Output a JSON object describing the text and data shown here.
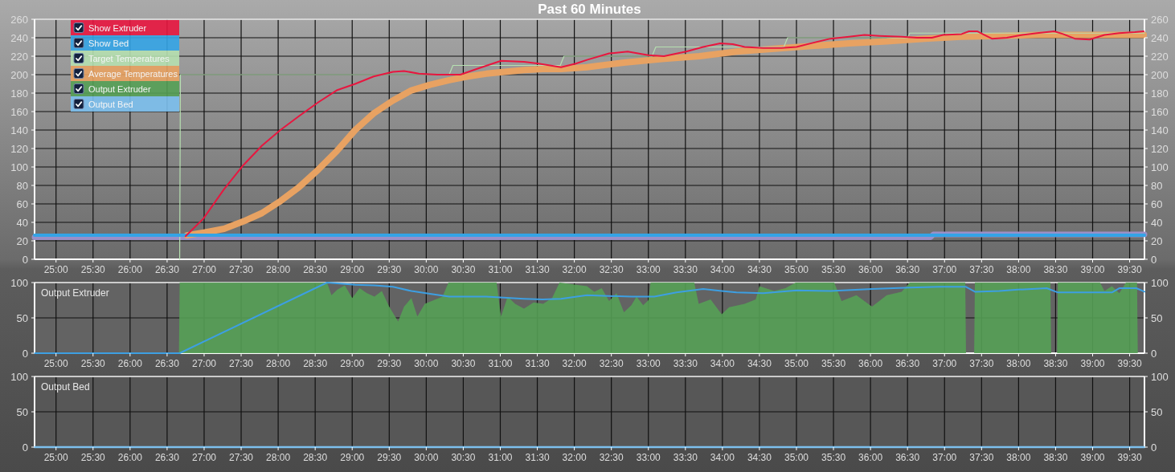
{
  "chart_data": [
    {
      "type": "line",
      "title": "Past 60 Minutes",
      "legend": "top left",
      "grid": true,
      "xlim": [
        24.71,
        39.7
      ],
      "xticks": [
        {
          "value": 25,
          "label": "25:00"
        },
        {
          "value": 25.5,
          "label": "25:30"
        },
        {
          "value": 26,
          "label": "26:00"
        },
        {
          "value": 26.5,
          "label": "26:30"
        },
        {
          "value": 27,
          "label": "27:00"
        },
        {
          "value": 27.5,
          "label": "27:30"
        },
        {
          "value": 28,
          "label": "28:00"
        },
        {
          "value": 28.5,
          "label": "28:30"
        },
        {
          "value": 29,
          "label": "29:00"
        },
        {
          "value": 29.5,
          "label": "29:30"
        },
        {
          "value": 30,
          "label": "30:00"
        },
        {
          "value": 30.5,
          "label": "30:30"
        },
        {
          "value": 31,
          "label": "31:00"
        },
        {
          "value": 31.5,
          "label": "31:30"
        },
        {
          "value": 32,
          "label": "32:00"
        },
        {
          "value": 32.5,
          "label": "32:30"
        },
        {
          "value": 33,
          "label": "33:00"
        },
        {
          "value": 33.5,
          "label": "33:30"
        },
        {
          "value": 34,
          "label": "34:00"
        },
        {
          "value": 34.5,
          "label": "34:30"
        },
        {
          "value": 35,
          "label": "35:00"
        },
        {
          "value": 35.5,
          "label": "35:30"
        },
        {
          "value": 36,
          "label": "36:00"
        },
        {
          "value": 36.5,
          "label": "36:30"
        },
        {
          "value": 37,
          "label": "37:00"
        },
        {
          "value": 37.5,
          "label": "37:30"
        },
        {
          "value": 38,
          "label": "38:00"
        },
        {
          "value": 38.5,
          "label": "38:30"
        },
        {
          "value": 39,
          "label": "39:00"
        },
        {
          "value": 39.5,
          "label": "39:30"
        }
      ],
      "ylim": [
        0,
        260
      ],
      "yticks": [
        0,
        20,
        40,
        60,
        80,
        100,
        120,
        140,
        160,
        180,
        200,
        220,
        240,
        260
      ],
      "y2lim": [
        0,
        260
      ],
      "y2ticks": [
        0,
        20,
        40,
        60,
        80,
        100,
        120,
        140,
        160,
        180,
        200,
        220,
        240,
        260
      ],
      "series": [
        {
          "name": "Show Extruder",
          "color": "#e8163f",
          "x": [
            26.75,
            26.99,
            27.27,
            27.53,
            27.78,
            28.03,
            28.28,
            28.54,
            28.79,
            29.04,
            29.29,
            29.55,
            29.7,
            29.9,
            30.15,
            30.46,
            30.71,
            31.01,
            31.32,
            31.52,
            31.82,
            32.02,
            32.17,
            32.47,
            32.72,
            33.0,
            33.21,
            33.51,
            33.74,
            33.97,
            34.14,
            34.3,
            34.55,
            34.8,
            35.0,
            35.2,
            35.46,
            35.71,
            35.92,
            36.12,
            36.42,
            36.63,
            36.83,
            36.98,
            37.23,
            37.33,
            37.44,
            37.54,
            37.64,
            37.84,
            38.05,
            38.25,
            38.48,
            38.6,
            38.76,
            38.96,
            39.16,
            39.36,
            39.57,
            39.69
          ],
          "values": [
            25,
            44,
            76,
            102,
            123,
            140,
            155,
            170,
            183,
            190,
            198,
            203,
            204,
            201,
            200,
            200,
            207,
            215,
            214,
            212,
            208,
            212,
            216,
            223,
            225,
            221,
            220,
            225,
            230,
            234,
            233,
            230,
            229,
            229,
            230,
            234,
            239,
            241,
            243,
            242,
            241,
            240,
            240,
            243,
            244,
            247,
            247,
            243,
            239,
            240,
            243,
            245,
            247,
            244,
            239,
            238,
            243,
            245,
            246,
            247
          ]
        },
        {
          "name": "Show Bed",
          "color": "#34a4e6",
          "x": [
            24.71,
            39.7
          ],
          "values": [
            26,
            26
          ]
        },
        {
          "name": "Target Temperatures",
          "color": "#b6e0b0",
          "x": [
            26.67,
            26.68,
            30.31,
            30.36,
            31.81,
            31.86,
            33.05,
            33.1,
            34.83,
            34.88,
            36.5,
            36.53,
            39.7
          ],
          "values": [
            0,
            200,
            200,
            210,
            210,
            220,
            220,
            230,
            230,
            240,
            240,
            245,
            245
          ]
        },
        {
          "name": "Average Temperatures",
          "color": "#e8a262",
          "x": [
            26.77,
            27.07,
            27.27,
            27.53,
            27.78,
            28.03,
            28.28,
            28.54,
            28.79,
            29.04,
            29.29,
            29.55,
            29.8,
            30.05,
            30.31,
            30.56,
            30.81,
            31.06,
            31.32,
            31.57,
            31.82,
            32.17,
            32.67,
            33.18,
            33.69,
            34.19,
            34.7,
            35.2,
            35.71,
            36.22,
            36.73,
            37.23,
            37.74,
            38.25,
            38.76,
            39.26,
            39.69
          ],
          "values": [
            26,
            30,
            33,
            41,
            50,
            63,
            78,
            97,
            117,
            140,
            158,
            172,
            183,
            189,
            194,
            198,
            201,
            203,
            205,
            206,
            206,
            208,
            213,
            217,
            220,
            225,
            228,
            231,
            234,
            236,
            239,
            241,
            242,
            243,
            243,
            243,
            243
          ]
        },
        {
          "color": "#9a90c8",
          "x": [
            24.71,
            36.81,
            36.85,
            39.7
          ],
          "values": [
            24,
            24,
            27,
            27
          ]
        }
      ]
    },
    {
      "type": "line",
      "title": "Output Extruder",
      "legend": "top left",
      "grid": true,
      "xlim": [
        24.71,
        39.7
      ],
      "xticks": [
        {
          "value": 25,
          "label": "25:00"
        },
        {
          "value": 25.5,
          "label": "25:30"
        },
        {
          "value": 26,
          "label": "26:00"
        },
        {
          "value": 26.5,
          "label": "26:30"
        },
        {
          "value": 27,
          "label": "27:00"
        },
        {
          "value": 27.5,
          "label": "27:30"
        },
        {
          "value": 28,
          "label": "28:00"
        },
        {
          "value": 28.5,
          "label": "28:30"
        },
        {
          "value": 29,
          "label": "29:00"
        },
        {
          "value": 29.5,
          "label": "29:30"
        },
        {
          "value": 30,
          "label": "30:00"
        },
        {
          "value": 30.5,
          "label": "30:30"
        },
        {
          "value": 31,
          "label": "31:00"
        },
        {
          "value": 31.5,
          "label": "31:30"
        },
        {
          "value": 32,
          "label": "32:00"
        },
        {
          "value": 32.5,
          "label": "32:30"
        },
        {
          "value": 33,
          "label": "33:00"
        },
        {
          "value": 33.5,
          "label": "33:30"
        },
        {
          "value": 34,
          "label": "34:00"
        },
        {
          "value": 34.5,
          "label": "34:30"
        },
        {
          "value": 35,
          "label": "35:00"
        },
        {
          "value": 35.5,
          "label": "35:30"
        },
        {
          "value": 36,
          "label": "36:00"
        },
        {
          "value": 36.5,
          "label": "36:30"
        },
        {
          "value": 37,
          "label": "37:00"
        },
        {
          "value": 37.5,
          "label": "37:30"
        },
        {
          "value": 38,
          "label": "38:00"
        },
        {
          "value": 38.5,
          "label": "38:30"
        },
        {
          "value": 39,
          "label": "39:00"
        },
        {
          "value": 39.5,
          "label": "39:30"
        }
      ],
      "ylim": [
        0,
        100
      ],
      "yticks": [
        0,
        50,
        100
      ],
      "y2lim": [
        0,
        100
      ],
      "y2ticks": [
        0,
        50,
        100
      ],
      "series": [
        {
          "type": "area",
          "name": "Output Extruder",
          "color": "#55a055",
          "x": [
            26.66,
            26.67,
            28.66,
            28.72,
            28.8,
            28.9,
            29.0,
            29.1,
            29.2,
            29.3,
            29.4,
            29.5,
            29.62,
            29.7,
            29.8,
            29.88,
            29.98,
            30.1,
            30.22,
            30.3,
            30.95,
            31.01,
            31.1,
            31.2,
            31.32,
            31.45,
            31.58,
            31.7,
            31.8,
            32.17,
            32.27,
            32.37,
            32.47,
            32.57,
            32.67,
            32.77,
            32.84,
            32.93,
            33.0,
            33.03,
            33.62,
            33.68,
            33.84,
            33.99,
            34.09,
            34.3,
            34.45,
            34.5,
            34.7,
            34.85,
            34.99,
            35.51,
            35.61,
            35.81,
            36.02,
            36.22,
            36.42,
            36.53,
            37.28,
            37.29,
            37.4,
            37.41,
            38.43,
            38.44,
            38.52,
            38.53,
            39.1,
            39.16,
            39.26,
            39.36,
            39.45,
            39.6,
            39.61
          ],
          "values": [
            0,
            100,
            100,
            82,
            90,
            96,
            78,
            92,
            85,
            80,
            88,
            66,
            45,
            66,
            78,
            52,
            70,
            75,
            80,
            100,
            100,
            52,
            80,
            70,
            63,
            72,
            70,
            78,
            100,
            95,
            87,
            92,
            74,
            85,
            58,
            68,
            80,
            68,
            75,
            100,
            100,
            70,
            76,
            55,
            65,
            70,
            76,
            95,
            88,
            92,
            100,
            100,
            74,
            82,
            66,
            82,
            87,
            100,
            100,
            0,
            0,
            100,
            100,
            0,
            0,
            100,
            100,
            88,
            95,
            85,
            100,
            100,
            0
          ]
        },
        {
          "color": "#3d9fe2",
          "x": [
            24.71,
            26.67,
            28.66,
            29.04,
            29.3,
            29.55,
            29.8,
            30.05,
            30.31,
            30.81,
            31.32,
            31.57,
            31.82,
            32.17,
            32.77,
            33.08,
            33.38,
            33.74,
            33.99,
            34.19,
            34.55,
            35.0,
            35.46,
            36.02,
            36.53,
            36.93,
            37.29,
            37.41,
            37.74,
            37.99,
            38.38,
            38.53,
            39.26,
            39.36,
            39.59,
            39.7
          ],
          "values": [
            0,
            0,
            100,
            97,
            96,
            94,
            88,
            84,
            80,
            80,
            77,
            76,
            77,
            82,
            80,
            80,
            86,
            91,
            88,
            86,
            85,
            89,
            88,
            91,
            93,
            94,
            94,
            87,
            88,
            90,
            92,
            86,
            86,
            92,
            92,
            87
          ]
        }
      ]
    },
    {
      "type": "line",
      "title": "Output Bed",
      "legend": "top left",
      "grid": true,
      "xlim": [
        24.71,
        39.7
      ],
      "xticks": [
        {
          "value": 25,
          "label": "25:00"
        },
        {
          "value": 25.5,
          "label": "25:30"
        },
        {
          "value": 26,
          "label": "26:00"
        },
        {
          "value": 26.5,
          "label": "26:30"
        },
        {
          "value": 27,
          "label": "27:00"
        },
        {
          "value": 27.5,
          "label": "27:30"
        },
        {
          "value": 28,
          "label": "28:00"
        },
        {
          "value": 28.5,
          "label": "28:30"
        },
        {
          "value": 29,
          "label": "29:00"
        },
        {
          "value": 29.5,
          "label": "29:30"
        },
        {
          "value": 30,
          "label": "30:00"
        },
        {
          "value": 30.5,
          "label": "30:30"
        },
        {
          "value": 31,
          "label": "31:00"
        },
        {
          "value": 31.5,
          "label": "31:30"
        },
        {
          "value": 32,
          "label": "32:00"
        },
        {
          "value": 32.5,
          "label": "32:30"
        },
        {
          "value": 33,
          "label": "33:00"
        },
        {
          "value": 33.5,
          "label": "33:30"
        },
        {
          "value": 34,
          "label": "34:00"
        },
        {
          "value": 34.5,
          "label": "34:30"
        },
        {
          "value": 35,
          "label": "35:00"
        },
        {
          "value": 35.5,
          "label": "35:30"
        },
        {
          "value": 36,
          "label": "36:00"
        },
        {
          "value": 36.5,
          "label": "36:30"
        },
        {
          "value": 37,
          "label": "37:00"
        },
        {
          "value": 37.5,
          "label": "37:30"
        },
        {
          "value": 38,
          "label": "38:00"
        },
        {
          "value": 38.5,
          "label": "38:30"
        },
        {
          "value": 39,
          "label": "39:00"
        },
        {
          "value": 39.5,
          "label": "39:30"
        }
      ],
      "ylim": [
        0,
        100
      ],
      "yticks": [
        0,
        50,
        100
      ],
      "y2lim": [
        0,
        100
      ],
      "y2ticks": [
        0,
        50,
        100
      ],
      "series": [
        {
          "name": "Output Bed",
          "color": "#7cc0ee",
          "x": [
            24.71,
            39.7
          ],
          "values": [
            0,
            0
          ]
        }
      ]
    }
  ]
}
